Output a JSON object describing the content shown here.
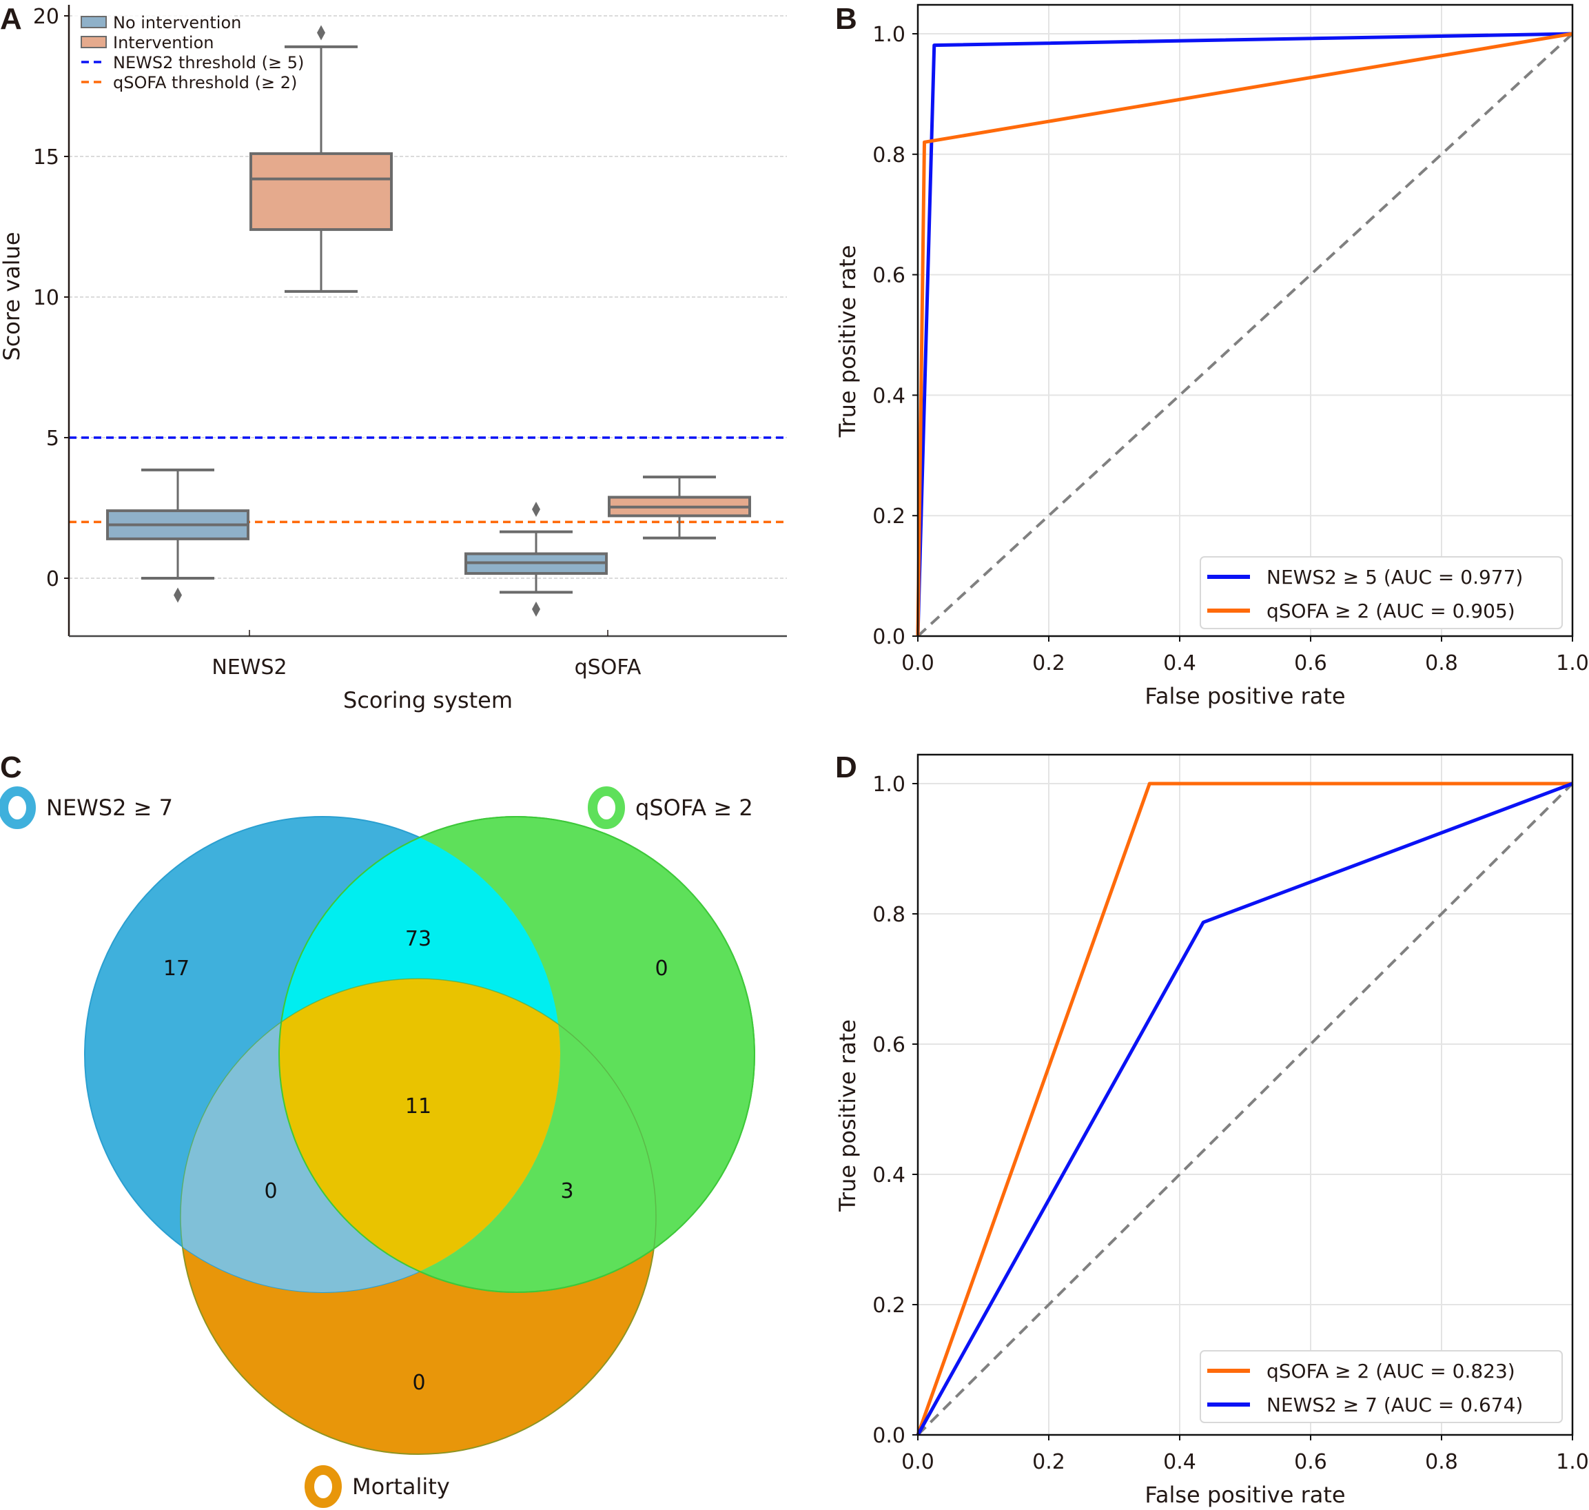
{
  "panels": {
    "A": "A",
    "B": "B",
    "C": "C",
    "D": "D"
  },
  "colors": {
    "no_intervention": "#8fb1c9",
    "intervention": "#e5aa8d",
    "box_edge": "#6b6b6b",
    "news2_line": "#0a12f5",
    "qsofa_line": "#ff6a0a",
    "diagonal": "#808080",
    "venn_news2": "#3fb0dc",
    "venn_qsofa": "#5ee05a",
    "venn_mortality": "#e8960a",
    "venn_news2_qsofa": "#00eef0",
    "venn_all": "#e9c300",
    "venn_news2_mort": "#80c0d8"
  },
  "chart_data": [
    {
      "id": "A",
      "type": "box",
      "title": "",
      "xlabel": "Scoring system",
      "ylabel": "Score value",
      "categories": [
        "NEWS2",
        "qSOFA"
      ],
      "ylim": [
        -2.1,
        20.5
      ],
      "yticks": [
        0,
        5,
        10,
        15,
        20
      ],
      "grid": "y dashed",
      "legend_position": "top-left",
      "legend": [
        "No intervention",
        "Intervention",
        "NEWS2 threshold (≥ 5)",
        "qSOFA threshold (≥ 2)"
      ],
      "series": [
        {
          "name": "No intervention",
          "boxes": [
            {
              "category": "NEWS2",
              "whisker_low": 0.0,
              "q1": 1.4,
              "median": 1.9,
              "q3": 2.4,
              "whisker_high": 3.85,
              "outliers": [
                -0.6
              ]
            },
            {
              "category": "qSOFA",
              "whisker_low": -0.5,
              "q1": 0.17,
              "median": 0.55,
              "q3": 0.87,
              "whisker_high": 1.65,
              "outliers": [
                2.45,
                -1.1
              ]
            }
          ]
        },
        {
          "name": "Intervention",
          "boxes": [
            {
              "category": "NEWS2",
              "whisker_low": 10.2,
              "q1": 12.4,
              "median": 14.2,
              "q3": 15.1,
              "whisker_high": 18.9,
              "outliers": [
                19.4
              ]
            },
            {
              "category": "qSOFA",
              "whisker_low": 1.43,
              "q1": 2.22,
              "median": 2.53,
              "q3": 2.88,
              "whisker_high": 3.6,
              "outliers": []
            }
          ]
        }
      ],
      "thresholds": [
        {
          "name": "NEWS2 threshold (≥ 5)",
          "value": 5,
          "color": "#0a12f5"
        },
        {
          "name": "qSOFA threshold (≥ 2)",
          "value": 2,
          "color": "#ff6a0a"
        }
      ]
    },
    {
      "id": "B",
      "type": "line",
      "title": "",
      "xlabel": "False positive rate",
      "ylabel": "True positive rate",
      "xlim": [
        0,
        1
      ],
      "ylim": [
        0,
        1
      ],
      "xticks": [
        "0.0",
        "0.2",
        "0.4",
        "0.6",
        "0.8",
        "1.0"
      ],
      "yticks": [
        "0.0",
        "0.2",
        "0.4",
        "0.6",
        "0.8",
        "1.0"
      ],
      "grid": true,
      "legend_position": "bottom-right",
      "series": [
        {
          "name": "NEWS2 ≥ 5 (AUC = 0.977)",
          "color": "#0a12f5",
          "x": [
            0,
            0.025,
            1
          ],
          "y": [
            0,
            0.981,
            1
          ]
        },
        {
          "name": "qSOFA ≥ 2 (AUC = 0.905)",
          "color": "#ff6a0a",
          "x": [
            0,
            0.01,
            1
          ],
          "y": [
            0,
            0.82,
            1
          ]
        }
      ],
      "diagonal": {
        "x": [
          0,
          1
        ],
        "y": [
          0,
          1
        ]
      }
    },
    {
      "id": "C",
      "type": "venn",
      "sets": [
        "NEWS2 ≥ 7",
        "qSOFA ≥ 2",
        "Mortality"
      ],
      "regions": {
        "news2_only": 17,
        "qsofa_only": 0,
        "mortality_only": 0,
        "news2_qsofa": 73,
        "news2_mortality": 0,
        "qsofa_mortality": 3,
        "all_three": 11
      }
    },
    {
      "id": "D",
      "type": "line",
      "title": "",
      "xlabel": "False positive rate",
      "ylabel": "True positive rate",
      "xlim": [
        0,
        1
      ],
      "ylim": [
        0,
        1
      ],
      "xticks": [
        "0.0",
        "0.2",
        "0.4",
        "0.6",
        "0.8",
        "1.0"
      ],
      "yticks": [
        "0.0",
        "0.2",
        "0.4",
        "0.6",
        "0.8",
        "1.0"
      ],
      "grid": true,
      "legend_position": "bottom-right",
      "series": [
        {
          "name": "qSOFA ≥ 2 (AUC = 0.823)",
          "color": "#ff6a0a",
          "x": [
            0,
            0.354,
            1
          ],
          "y": [
            0,
            1,
            1
          ]
        },
        {
          "name": "NEWS2 ≥ 7 (AUC = 0.674)",
          "color": "#0a12f5",
          "x": [
            0,
            0.436,
            1
          ],
          "y": [
            0,
            0.787,
            1
          ]
        }
      ],
      "diagonal": {
        "x": [
          0,
          1
        ],
        "y": [
          0,
          1
        ]
      }
    }
  ]
}
